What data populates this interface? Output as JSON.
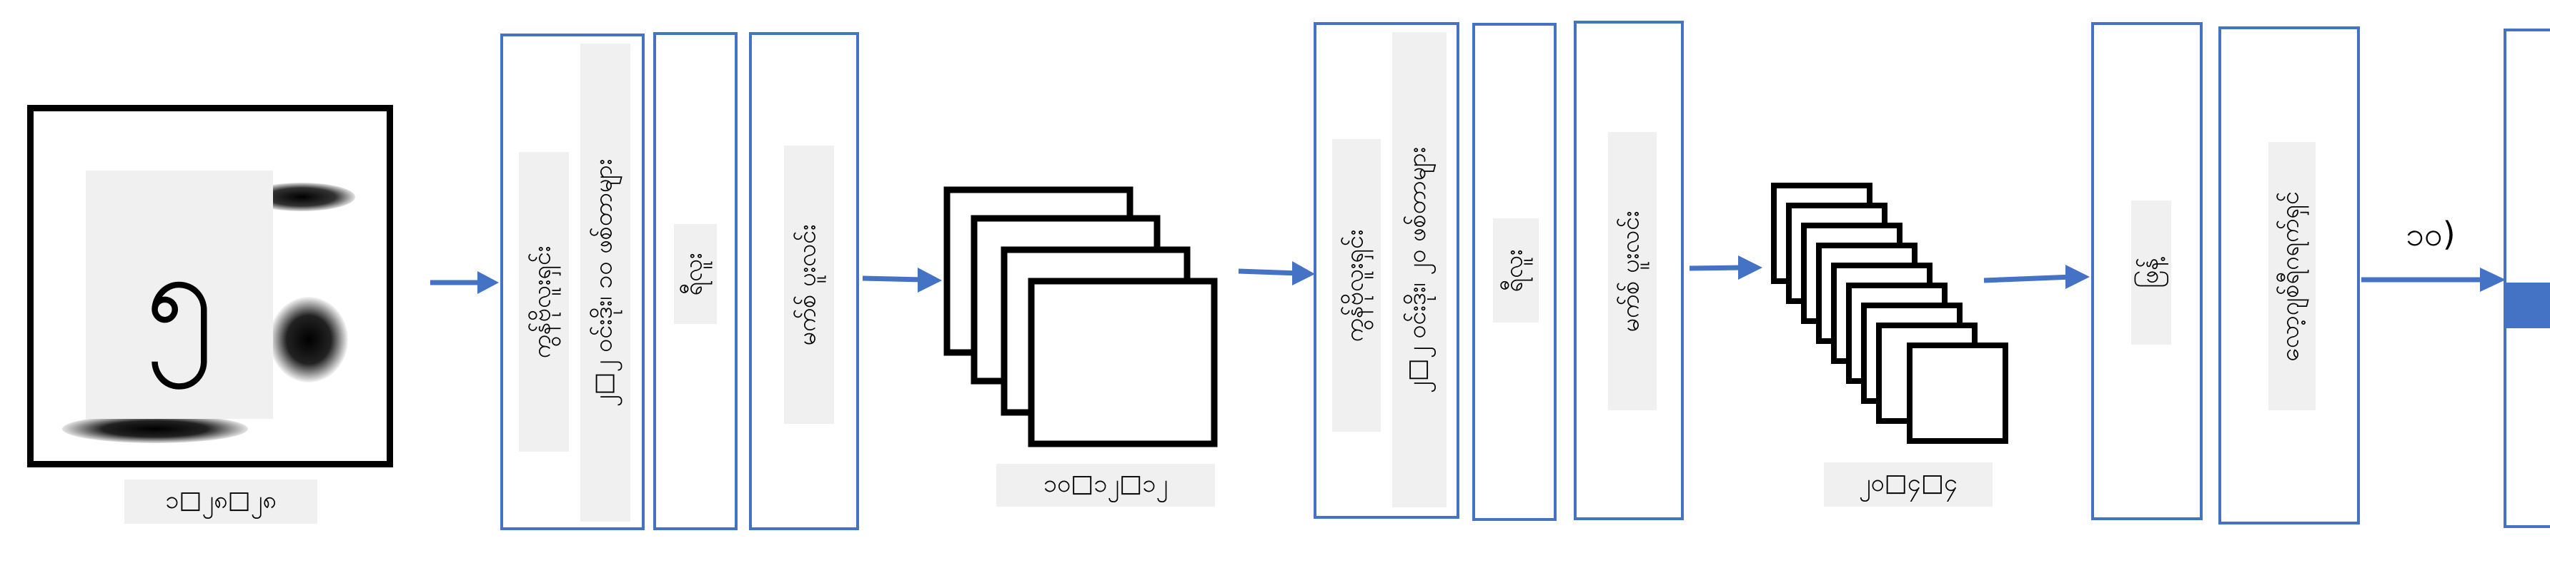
{
  "input": {
    "digit": "၅",
    "caption": "၁□၂၈□၂၈"
  },
  "block1": {
    "conv_label": "ကွန်ဗိုလူးရှင်း",
    "conv_params": "၂□၂ ဝင်းဒိုး၊ ၁၀ ဖစ်တာများ",
    "relu_label": "ရီလူး",
    "pool_label": "မက်စ် ပူးလင်း"
  },
  "fmap1": {
    "caption": "၁၀□၁၂□၁၂"
  },
  "block2": {
    "conv_label": "ကွန်ဗိုလူးရှင်း",
    "conv_params": "၂□၂ ဝင်းဒိုး၊ ၂၀ ဖစ်တာများ",
    "relu_label": "ရီလူး",
    "pool_label": "မက်စ် ပူးလင်း"
  },
  "fmap2": {
    "caption": "၂၀□၄□၄"
  },
  "head": {
    "flatten_label": "ဖြန့်",
    "dense_label": "လော့ဂျစ်ရီဂရက်ရှင်",
    "output_label": "၁၀)"
  },
  "colors": {
    "accent": "#4472c4",
    "label_bg": "#f0f0f0"
  }
}
